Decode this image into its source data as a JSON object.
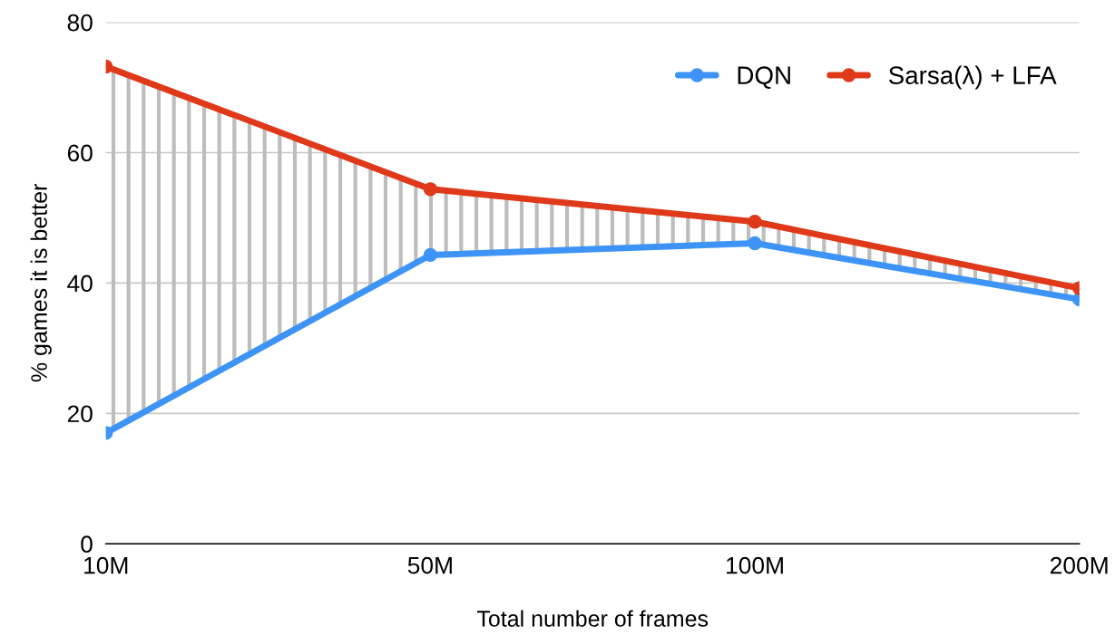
{
  "chart_data": {
    "type": "line",
    "xlabel": "Total number of frames",
    "ylabel": "% games it is better",
    "categories": [
      "10M",
      "50M",
      "100M",
      "200M"
    ],
    "series": [
      {
        "name": "DQN",
        "color": "#3d94f6",
        "values": [
          17.0,
          44.3,
          46.1,
          37.5
        ]
      },
      {
        "name": "Sarsa(λ) + LFA",
        "color": "#e0391a",
        "values": [
          73.2,
          54.4,
          49.4,
          39.2
        ],
        "lower": [
          17.0,
          44.3,
          46.1,
          37.5
        ],
        "upper": [
          73.2,
          54.4,
          49.4,
          39.2
        ]
      }
    ],
    "ylim": [
      0,
      80
    ],
    "yticks": [
      0,
      20,
      40,
      60,
      80
    ],
    "grid": "y",
    "legend": "top right",
    "marker": "circle",
    "line_style": "solid"
  }
}
